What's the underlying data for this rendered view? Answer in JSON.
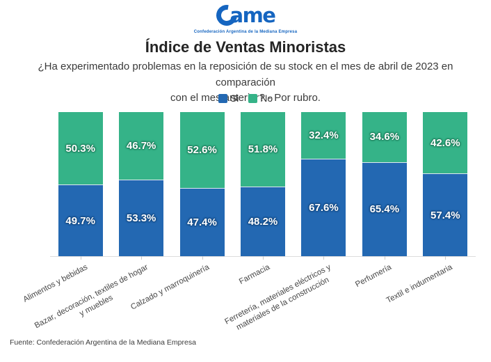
{
  "logo": {
    "brand": "ame",
    "tagline": "Confederación Argentina de la Mediana Empresa",
    "brand_color": "#1565c0"
  },
  "header": {
    "title": "Índice de Ventas Minoristas",
    "subtitle": "¿Ha experimentado problemas en la reposición de su stock en el mes de abril de 2023 en comparación\ncon el mes anterior? - Por rubro."
  },
  "legend": [
    {
      "label": "Si",
      "color": "#2368b2"
    },
    {
      "label": "No",
      "color": "#35b388"
    }
  ],
  "chart_data": {
    "type": "bar",
    "stacked": true,
    "percent": true,
    "title": "Índice de Ventas Minoristas",
    "question": "¿Ha experimentado problemas en la reposición de su stock en el mes de abril de 2023 en comparación con el mes anterior? - Por rubro.",
    "categories": [
      "Alimentos y bebidas",
      "Bazar, decoración, textiles de hogar\ny muebles",
      "Calzado y marroquinería",
      "Farmacia",
      "Ferretería, materiales eléctricos y\nmateriales de la construcción",
      "Perfumería",
      "Textil e indumentaria"
    ],
    "series": [
      {
        "name": "Si",
        "color": "#2368b2",
        "values": [
          49.7,
          53.3,
          47.4,
          48.2,
          67.6,
          65.4,
          57.4
        ]
      },
      {
        "name": "No",
        "color": "#35b388",
        "values": [
          50.3,
          46.7,
          52.6,
          51.8,
          32.4,
          34.6,
          42.6
        ]
      }
    ],
    "value_suffix": "%",
    "ylim": [
      0,
      100
    ],
    "legend_position": "top",
    "grid": false
  },
  "footer": {
    "source": "Fuente: Confederación Argentina de la Mediana Empresa"
  }
}
